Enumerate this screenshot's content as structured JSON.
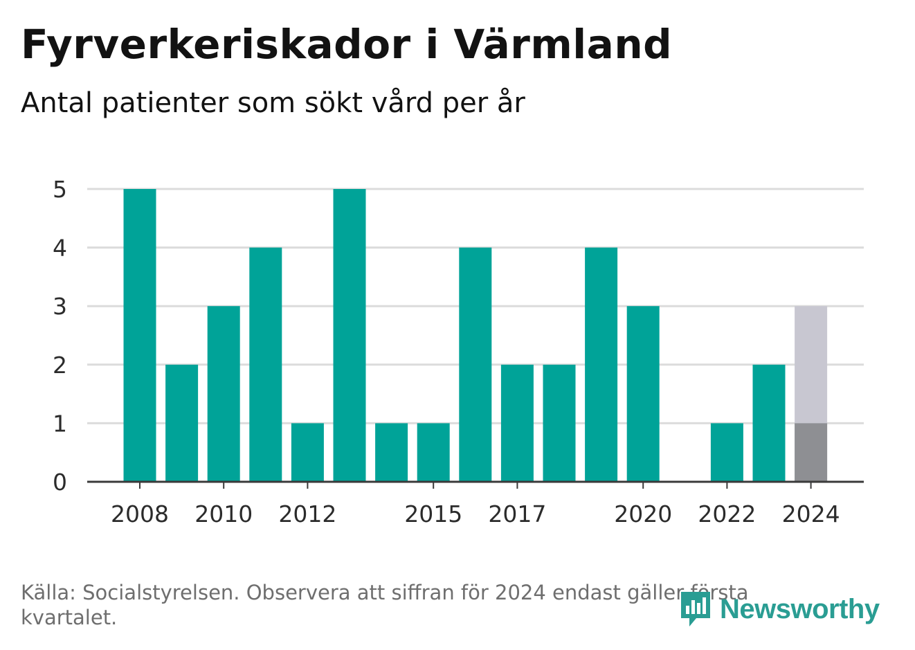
{
  "header": {
    "title": "Fyrverkeriskador i Värmland",
    "subtitle": "Antal patienter som sökt vård per år"
  },
  "footer": {
    "source_text": "Källa: Socialstyrelsen. Observera att siffran för 2024 endast gäller första kvartalet."
  },
  "brand": {
    "name": "Newsworthy",
    "icon": "newsworthy-logo-icon"
  },
  "colors": {
    "bar": "#00a398",
    "partial_total": "#c8c7d1",
    "partial_actual": "#8e8f93",
    "grid": "#dcdcdc",
    "axis": "#3a3a3a"
  },
  "chart_data": {
    "type": "bar",
    "title": "Fyrverkeriskador i Värmland",
    "subtitle": "Antal patienter som sökt vård per år",
    "categories": [
      "2008",
      "2009",
      "2010",
      "2011",
      "2012",
      "2013",
      "2014",
      "2015",
      "2016",
      "2017",
      "2018",
      "2019",
      "2020",
      "2021",
      "2022",
      "2023",
      "2024"
    ],
    "values": [
      5,
      2,
      3,
      4,
      1,
      5,
      1,
      1,
      4,
      2,
      2,
      4,
      3,
      0,
      1,
      2,
      1
    ],
    "projected": {
      "category": "2024",
      "value": 3
    },
    "x_tick_labels": [
      "2008",
      "2010",
      "2012",
      "2015",
      "2017",
      "2020",
      "2022",
      "2024"
    ],
    "y_ticks": [
      0,
      1,
      2,
      3,
      4,
      5
    ],
    "ylim": [
      0,
      5
    ],
    "grid": true,
    "xlabel": "",
    "ylabel": ""
  }
}
